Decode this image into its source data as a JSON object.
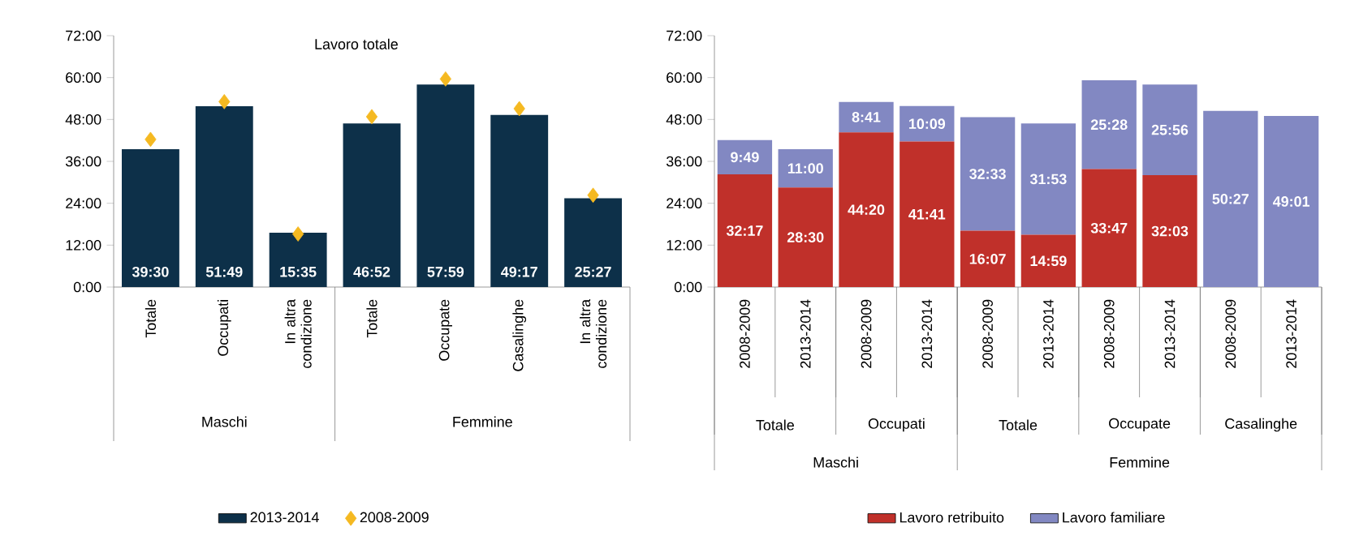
{
  "chart_data": [
    {
      "type": "bar",
      "title": "Lavoro totale",
      "categories": [
        "Totale",
        "Occupati",
        "In altra condizione",
        "Totale",
        "Occupate",
        "Casalinghe",
        "In altra condizione"
      ],
      "series": [
        {
          "name": "2013-2014",
          "type": "bar",
          "color": "#0d3049",
          "values": [
            39.5,
            51.817,
            15.583,
            46.867,
            57.983,
            49.283,
            25.45
          ],
          "value_labels": [
            "39:30",
            "51:49",
            "15:35",
            "46:52",
            "57:59",
            "49:17",
            "25:27"
          ]
        },
        {
          "name": "2008-2009",
          "type": "scatter",
          "marker": "diamond",
          "color": "#f5b921",
          "values": [
            42.3,
            53.1,
            15.2,
            48.8,
            59.6,
            51.1,
            26.3
          ]
        }
      ],
      "ylim": [
        0,
        72
      ],
      "yticks": [
        {
          "value": 0,
          "label": "0:00"
        },
        {
          "value": 12,
          "label": "12:00"
        },
        {
          "value": 24,
          "label": "24:00"
        },
        {
          "value": 36,
          "label": "36:00"
        },
        {
          "value": 48,
          "label": "48:00"
        },
        {
          "value": 60,
          "label": "60:00"
        },
        {
          "value": 72,
          "label": "72:00"
        }
      ],
      "annotations": [
        "Maschi",
        "Femmine"
      ],
      "legend": "bottom"
    },
    {
      "type": "bar",
      "stacked": true,
      "categories": [
        "2008-2009",
        "2013-2014",
        "2008-2009",
        "2013-2014",
        "2008-2009",
        "2013-2014",
        "2008-2009",
        "2013-2014",
        "2008-2009",
        "2013-2014"
      ],
      "series": [
        {
          "name": "Lavoro retribuito",
          "color": "#c0302a",
          "values": [
            32.283,
            28.5,
            44.333,
            41.683,
            16.117,
            14.983,
            33.783,
            32.05,
            0,
            0
          ],
          "value_labels": [
            "32:17",
            "28:30",
            "44:20",
            "41:41",
            "16:07",
            "14:59",
            "33:47",
            "32:03",
            null,
            null
          ]
        },
        {
          "name": "Lavoro familiare",
          "color": "#8288c2",
          "values": [
            9.817,
            11,
            8.683,
            10.15,
            32.55,
            31.883,
            25.467,
            25.933,
            50.45,
            49.017
          ],
          "value_labels": [
            "9:49",
            "11:00",
            "8:41",
            "10:09",
            "32:33",
            "31:53",
            "25:28",
            "25:56",
            "50:27",
            "49:01"
          ]
        }
      ],
      "ylim": [
        0,
        72
      ],
      "yticks": [
        {
          "value": 0,
          "label": "0:00"
        },
        {
          "value": 12,
          "label": "12:00"
        },
        {
          "value": 24,
          "label": "24:00"
        },
        {
          "value": 36,
          "label": "36:00"
        },
        {
          "value": 48,
          "label": "48:00"
        },
        {
          "value": 60,
          "label": "60:00"
        },
        {
          "value": 72,
          "label": "72:00"
        }
      ],
      "annotations": [
        "Totale",
        "Occupati",
        "Totale",
        "Occupate",
        "Casalinghe",
        "Maschi",
        "Femmine"
      ],
      "legend": "bottom"
    }
  ]
}
